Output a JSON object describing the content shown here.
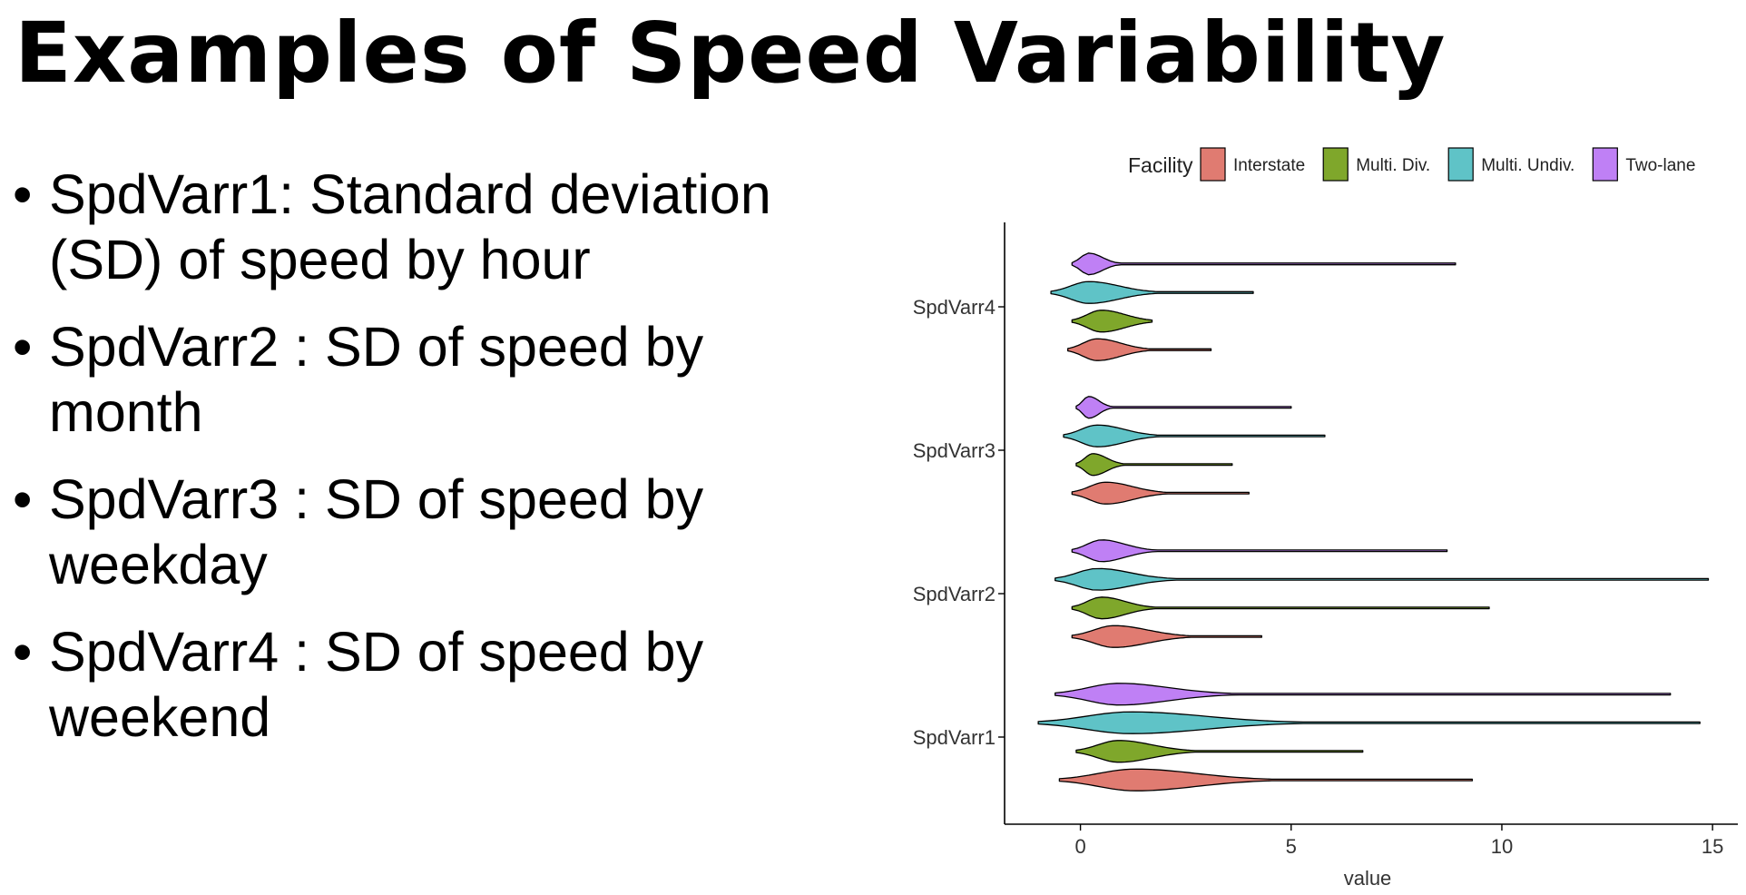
{
  "slide": {
    "title": "Examples of Speed Variability",
    "bullets": [
      "SpdVarr1: Standard deviation (SD) of speed by hour",
      "SpdVarr2 : SD of speed by month",
      "SpdVarr3 : SD of speed by weekday",
      "SpdVarr4 : SD of speed by weekend"
    ],
    "bullet_symbol": "•"
  },
  "chart_data": {
    "type": "violin",
    "orientation": "horizontal",
    "xlabel": "value",
    "ylabel": "",
    "xlim": [
      -1.8,
      15.6
    ],
    "x_ticks": [
      0,
      5,
      10,
      15
    ],
    "categories": [
      "SpdVarr1",
      "SpdVarr2",
      "SpdVarr3",
      "SpdVarr4"
    ],
    "legend": {
      "title": "Facility",
      "position": "top"
    },
    "grid": false,
    "series": [
      {
        "name": "Interstate",
        "color": "#E07B71",
        "data": [
          {
            "category": "SpdVarr1",
            "min": -0.5,
            "mode": 1.3,
            "max": 9.3
          },
          {
            "category": "SpdVarr2",
            "min": -0.2,
            "mode": 0.8,
            "max": 4.3
          },
          {
            "category": "SpdVarr3",
            "min": -0.2,
            "mode": 0.6,
            "max": 4.0
          },
          {
            "category": "SpdVarr4",
            "min": -0.3,
            "mode": 0.4,
            "max": 3.1
          }
        ]
      },
      {
        "name": "Multi. Div.",
        "color": "#7FA72B",
        "data": [
          {
            "category": "SpdVarr1",
            "min": -0.1,
            "mode": 0.9,
            "max": 6.7
          },
          {
            "category": "SpdVarr2",
            "min": -0.2,
            "mode": 0.5,
            "max": 9.7
          },
          {
            "category": "SpdVarr3",
            "min": -0.1,
            "mode": 0.3,
            "max": 3.6
          },
          {
            "category": "SpdVarr4",
            "min": -0.2,
            "mode": 0.5,
            "max": 1.7
          }
        ]
      },
      {
        "name": "Multi. Undiv.",
        "color": "#5FC3C7",
        "data": [
          {
            "category": "SpdVarr1",
            "min": -1.0,
            "mode": 1.2,
            "max": 14.7
          },
          {
            "category": "SpdVarr2",
            "min": -0.6,
            "mode": 0.4,
            "max": 14.9
          },
          {
            "category": "SpdVarr3",
            "min": -0.4,
            "mode": 0.4,
            "max": 5.8
          },
          {
            "category": "SpdVarr4",
            "min": -0.7,
            "mode": 0.2,
            "max": 4.1
          }
        ]
      },
      {
        "name": "Two-lane",
        "color": "#BF80F5",
        "data": [
          {
            "category": "SpdVarr1",
            "min": -0.6,
            "mode": 0.9,
            "max": 14.0
          },
          {
            "category": "SpdVarr2",
            "min": -0.2,
            "mode": 0.5,
            "max": 8.7
          },
          {
            "category": "SpdVarr3",
            "min": -0.1,
            "mode": 0.2,
            "max": 5.0
          },
          {
            "category": "SpdVarr4",
            "min": -0.2,
            "mode": 0.2,
            "max": 8.9
          }
        ]
      }
    ]
  }
}
